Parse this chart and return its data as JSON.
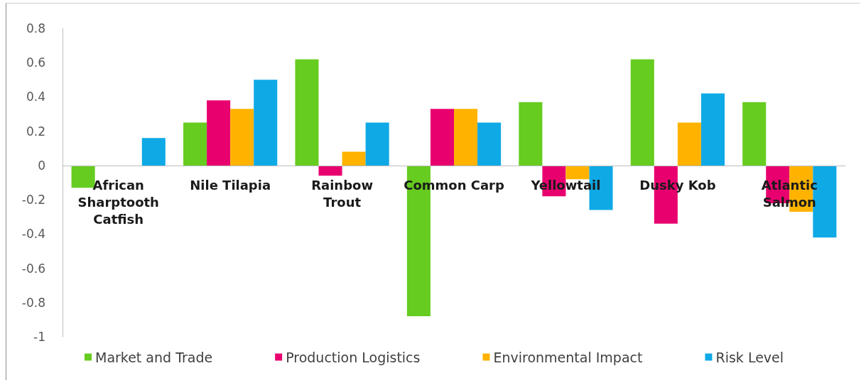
{
  "chart_data": {
    "type": "bar",
    "categories": [
      "African\nSharptooth\nCatfish",
      "Nile Tilapia",
      "Rainbow\nTrout",
      "Common Carp",
      "Yellowtail",
      "Dusky Kob",
      "Atlantic\nSalmon"
    ],
    "series": [
      {
        "name": "Market and Trade",
        "color": "#66cc1f",
        "values": [
          -0.13,
          0.25,
          0.62,
          -0.88,
          0.37,
          0.62,
          0.37
        ]
      },
      {
        "name": "Production Logistics",
        "color": "#e8006f",
        "values": [
          null,
          0.38,
          -0.06,
          0.33,
          -0.18,
          -0.34,
          -0.22
        ]
      },
      {
        "name": "Environmental Impact",
        "color": "#ffb300",
        "values": [
          null,
          0.33,
          0.08,
          0.33,
          -0.08,
          0.25,
          -0.27
        ]
      },
      {
        "name": "Risk Level",
        "color": "#0fa9e6",
        "values": [
          0.16,
          0.5,
          0.25,
          0.25,
          -0.26,
          0.42,
          -0.42
        ]
      }
    ],
    "ylim": [
      -1,
      0.8
    ],
    "yticks": [
      -1,
      -0.8,
      -0.6,
      -0.4,
      -0.2,
      0,
      0.2,
      0.4,
      0.6,
      0.8
    ],
    "grid": false,
    "legend": "bottom"
  }
}
